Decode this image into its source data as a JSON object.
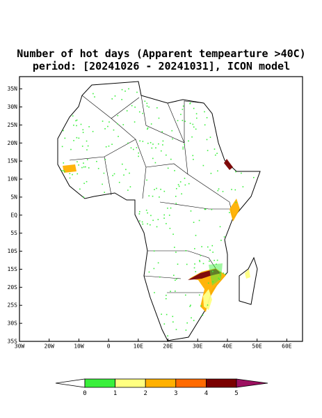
{
  "title": [
    "Number of hot days (Apparent tempearture >40C)",
    "period: [20241026 - 20241031], ICON model"
  ],
  "map": {
    "xlim": [
      -30,
      65.3
    ],
    "ylim": [
      -35,
      38.4
    ],
    "xticks": [
      {
        "value": -30,
        "label": "30W"
      },
      {
        "value": -20,
        "label": "20W"
      },
      {
        "value": -10,
        "label": "10W"
      },
      0,
      {
        "value": 10,
        "label": "10E"
      },
      {
        "value": 20,
        "label": "20E"
      },
      {
        "value": 30,
        "label": "30E"
      },
      {
        "value": 40,
        "label": "40E"
      },
      {
        "value": 50,
        "label": "50E"
      },
      {
        "value": 60,
        "label": "60E"
      }
    ],
    "yticks": [
      {
        "value": 35,
        "label": "35N"
      },
      {
        "value": 30,
        "label": "30N"
      },
      {
        "value": 25,
        "label": "25N"
      },
      {
        "value": 20,
        "label": "20N"
      },
      {
        "value": 15,
        "label": "15N"
      },
      {
        "value": 10,
        "label": "10N"
      },
      {
        "value": 5,
        "label": "5N"
      },
      {
        "value": 0,
        "label": "EQ"
      },
      {
        "value": -5,
        "label": "5S"
      },
      {
        "value": -10,
        "label": "10S"
      },
      {
        "value": -15,
        "label": "15S"
      },
      {
        "value": -20,
        "label": "20S"
      },
      {
        "value": -25,
        "label": "25S"
      },
      {
        "value": -30,
        "label": "30S"
      },
      {
        "value": -35,
        "label": "35S"
      }
    ]
  },
  "colorbar": {
    "bounds": [
      0,
      1,
      2,
      3,
      4,
      5
    ],
    "colors": [
      "#39f03b",
      "#ffff80",
      "#ffb000",
      "#ff6a00",
      "#7a0000"
    ],
    "under_color": "#ffffff",
    "over_color": "#9c1060"
  }
}
